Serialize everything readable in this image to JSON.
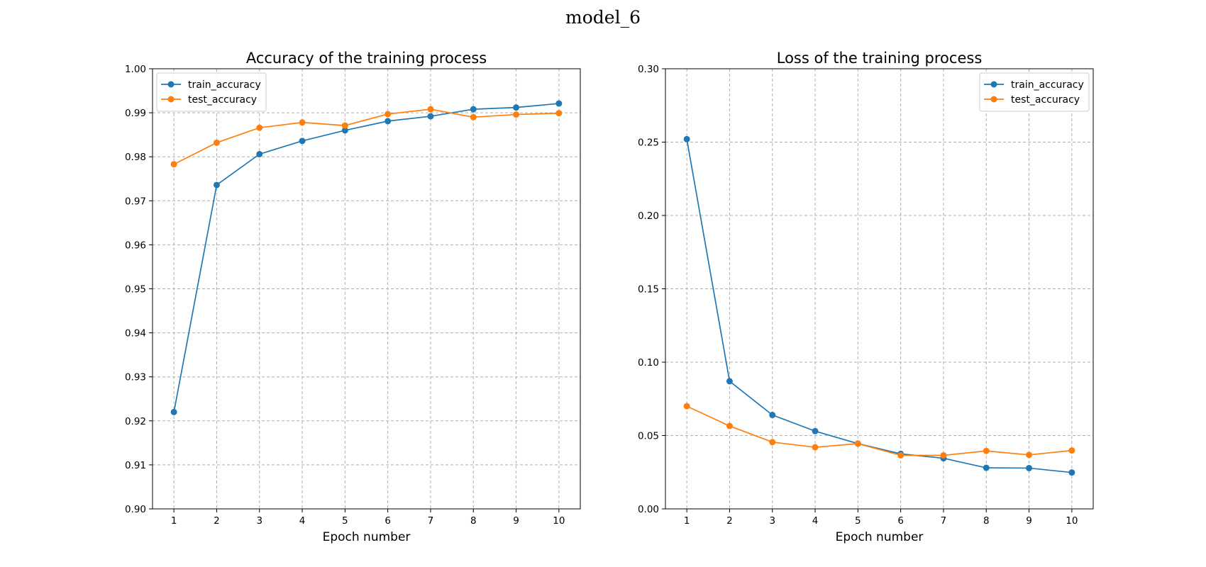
{
  "figure": {
    "suptitle": "model_6"
  },
  "chart_data": [
    {
      "type": "line",
      "title": "Accuracy of the training process",
      "xlabel": "Epoch number",
      "ylabel": "",
      "x": [
        1,
        2,
        3,
        4,
        5,
        6,
        7,
        8,
        9,
        10
      ],
      "xticks": [
        "1",
        "2",
        "3",
        "4",
        "5",
        "6",
        "7",
        "8",
        "9",
        "10"
      ],
      "ylim": [
        0.9,
        1.0
      ],
      "yticks": [
        "0.90",
        "0.91",
        "0.92",
        "0.93",
        "0.94",
        "0.95",
        "0.96",
        "0.97",
        "0.98",
        "0.99",
        "1.00"
      ],
      "grid": true,
      "legend_position": "top-left",
      "series": [
        {
          "name": "train_accuracy",
          "color": "#1f77b4",
          "values": [
            0.922,
            0.9736,
            0.9806,
            0.9836,
            0.986,
            0.9881,
            0.9892,
            0.9908,
            0.9912,
            0.9921
          ]
        },
        {
          "name": "test_accuracy",
          "color": "#ff7f0e",
          "values": [
            0.9783,
            0.9832,
            0.9866,
            0.9878,
            0.9871,
            0.9897,
            0.9908,
            0.989,
            0.9896,
            0.9899
          ]
        }
      ]
    },
    {
      "type": "line",
      "title": "Loss of the training process",
      "xlabel": "Epoch number",
      "ylabel": "",
      "x": [
        1,
        2,
        3,
        4,
        5,
        6,
        7,
        8,
        9,
        10
      ],
      "xticks": [
        "1",
        "2",
        "3",
        "4",
        "5",
        "6",
        "7",
        "8",
        "9",
        "10"
      ],
      "ylim": [
        0.0,
        0.3
      ],
      "yticks": [
        "0.00",
        "0.05",
        "0.10",
        "0.15",
        "0.20",
        "0.25",
        "0.30"
      ],
      "grid": true,
      "legend_position": "top-right",
      "series": [
        {
          "name": "train_accuracy",
          "color": "#1f77b4",
          "values": [
            0.252,
            0.087,
            0.064,
            0.053,
            0.0445,
            0.0375,
            0.0345,
            0.028,
            0.0278,
            0.0248
          ]
        },
        {
          "name": "test_accuracy",
          "color": "#ff7f0e",
          "values": [
            0.07,
            0.0565,
            0.0455,
            0.042,
            0.0445,
            0.0365,
            0.0365,
            0.0395,
            0.0368,
            0.0398
          ]
        }
      ]
    }
  ]
}
